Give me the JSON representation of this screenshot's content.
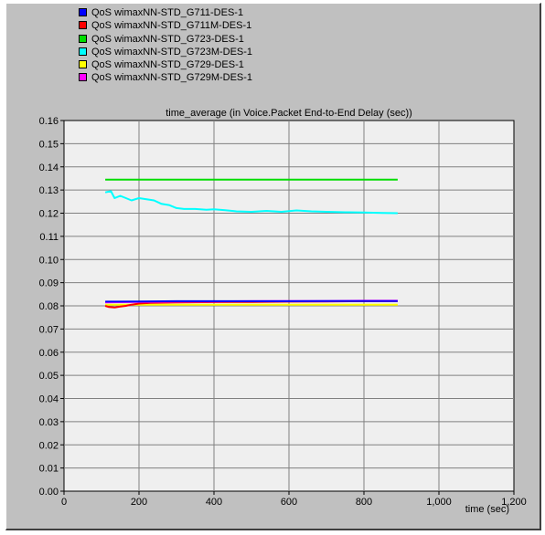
{
  "chart_data": {
    "type": "line",
    "title": "time_average (in Voice.Packet End-to-End Delay (sec))",
    "xlabel": "time (sec)",
    "ylabel": "",
    "xlim": [
      0,
      1200
    ],
    "ylim": [
      0,
      0.16
    ],
    "xticks": [
      0,
      200,
      400,
      600,
      800,
      1000,
      1200
    ],
    "xtick_labels": [
      "0",
      "200",
      "400",
      "600",
      "800",
      "1,000",
      "1,200"
    ],
    "yticks": [
      0,
      0.01,
      0.02,
      0.03,
      0.04,
      0.05,
      0.06,
      0.07,
      0.08,
      0.09,
      0.1,
      0.11,
      0.12,
      0.13,
      0.14,
      0.15,
      0.16
    ],
    "ytick_labels": [
      "0.00",
      "0.01",
      "0.02",
      "0.03",
      "0.04",
      "0.05",
      "0.06",
      "0.07",
      "0.08",
      "0.09",
      "0.10",
      "0.11",
      "0.12",
      "0.13",
      "0.14",
      "0.15",
      "0.16"
    ],
    "grid": true,
    "legend_position": "top-left",
    "series": [
      {
        "name": "QoS wimaxNN-STD_G711-DES-1",
        "color": "#0000ff",
        "x": [
          110,
          200,
          300,
          400,
          500,
          600,
          700,
          800,
          890
        ],
        "y": [
          0.0818,
          0.0819,
          0.082,
          0.082,
          0.082,
          0.082,
          0.0821,
          0.0821,
          0.0821
        ]
      },
      {
        "name": "QoS wimaxNN-STD_G711M-DES-1",
        "color": "#ff0000",
        "x": [
          110,
          120,
          135,
          150,
          165,
          180,
          200,
          230,
          300,
          400,
          500,
          600,
          700,
          800,
          890
        ],
        "y": [
          0.08,
          0.0795,
          0.0793,
          0.0797,
          0.08,
          0.0805,
          0.081,
          0.0813,
          0.0815,
          0.0816,
          0.0817,
          0.0818,
          0.0819,
          0.082,
          0.0821
        ]
      },
      {
        "name": "QoS wimaxNN-STD_G723-DES-1",
        "color": "#00dd00",
        "x": [
          110,
          890
        ],
        "y": [
          0.1345,
          0.1345
        ]
      },
      {
        "name": "QoS wimaxNN-STD_G723M-DES-1",
        "color": "#00ffff",
        "x": [
          110,
          125,
          135,
          150,
          165,
          180,
          200,
          220,
          240,
          260,
          280,
          300,
          320,
          350,
          380,
          400,
          430,
          460,
          500,
          540,
          580,
          620,
          660,
          700,
          750,
          800,
          850,
          890
        ],
        "y": [
          0.129,
          0.1295,
          0.1265,
          0.1275,
          0.1265,
          0.1255,
          0.1265,
          0.126,
          0.1255,
          0.124,
          0.1235,
          0.1222,
          0.1218,
          0.1218,
          0.1215,
          0.1217,
          0.1213,
          0.1208,
          0.1206,
          0.121,
          0.1206,
          0.1212,
          0.1208,
          0.1206,
          0.1204,
          0.1203,
          0.1201,
          0.12
        ]
      },
      {
        "name": "QoS wimaxNN-STD_G729-DES-1",
        "color": "#ffff00",
        "x": [
          110,
          890
        ],
        "y": [
          0.0805,
          0.0805
        ]
      },
      {
        "name": "QoS wimaxNN-STD_G729M-DES-1",
        "color": "#ff00ff",
        "x": [
          110,
          200,
          300,
          400,
          500,
          600,
          700,
          800,
          890
        ],
        "y": [
          0.0815,
          0.0817,
          0.0818,
          0.0819,
          0.082,
          0.0821,
          0.0821,
          0.0822,
          0.0822
        ]
      }
    ]
  }
}
